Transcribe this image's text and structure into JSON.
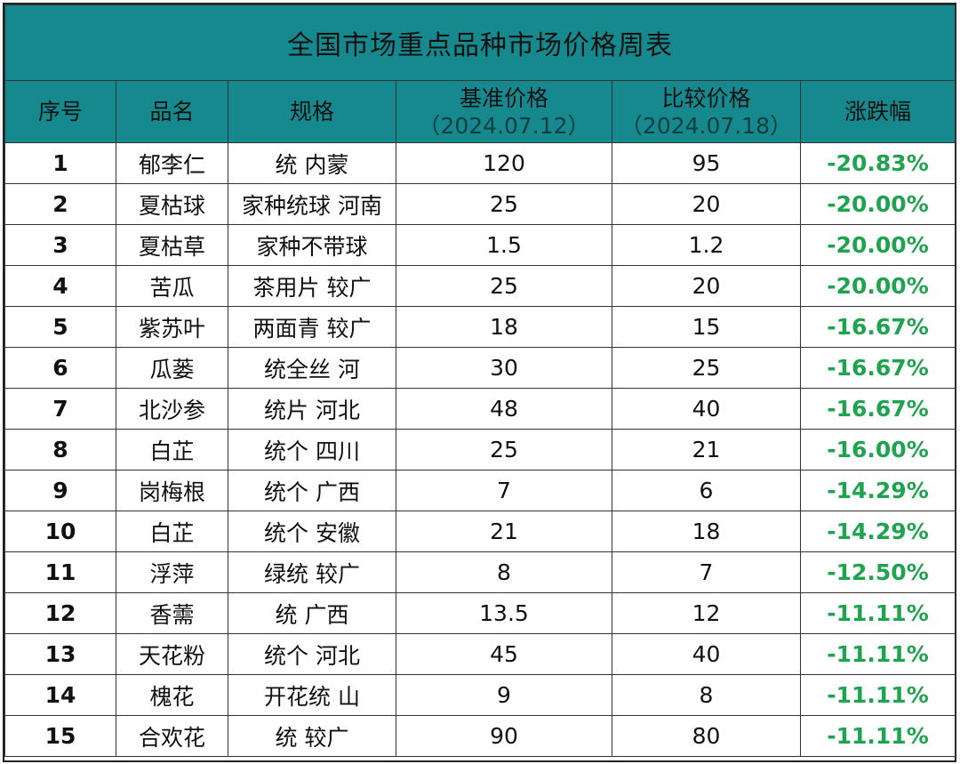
{
  "title": "全国市场重点品种市场价格周表",
  "headers": {
    "index": "序号",
    "name": "品名",
    "spec": "规格",
    "base_price": "基准价格",
    "base_date": "（2024.07.12）",
    "compare_price": "比较价格",
    "compare_date": "（2024.07.18）",
    "change": "涨跌幅"
  },
  "rows": [
    {
      "index": "1",
      "name": "郁李仁",
      "spec": "统 内蒙",
      "base": "120",
      "compare": "95",
      "change": "-20.83%"
    },
    {
      "index": "2",
      "name": "夏枯球",
      "spec": "家种统球 河南",
      "base": "25",
      "compare": "20",
      "change": "-20.00%"
    },
    {
      "index": "3",
      "name": "夏枯草",
      "spec": "家种不带球",
      "base": "1.5",
      "compare": "1.2",
      "change": "-20.00%"
    },
    {
      "index": "4",
      "name": "苦瓜",
      "spec": "茶用片 较广",
      "base": "25",
      "compare": "20",
      "change": "-20.00%"
    },
    {
      "index": "5",
      "name": "紫苏叶",
      "spec": "两面青 较广",
      "base": "18",
      "compare": "15",
      "change": "-16.67%"
    },
    {
      "index": "6",
      "name": "瓜蒌",
      "spec": "统全丝 河",
      "base": "30",
      "compare": "25",
      "change": "-16.67%"
    },
    {
      "index": "7",
      "name": "北沙参",
      "spec": "统片 河北",
      "base": "48",
      "compare": "40",
      "change": "-16.67%"
    },
    {
      "index": "8",
      "name": "白芷",
      "spec": "统个 四川",
      "base": "25",
      "compare": "21",
      "change": "-16.00%"
    },
    {
      "index": "9",
      "name": "岗梅根",
      "spec": "统个 广西",
      "base": "7",
      "compare": "6",
      "change": "-14.29%"
    },
    {
      "index": "10",
      "name": "白芷",
      "spec": "统个 安徽",
      "base": "21",
      "compare": "18",
      "change": "-14.29%"
    },
    {
      "index": "11",
      "name": "浮萍",
      "spec": "绿统 较广",
      "base": "8",
      "compare": "7",
      "change": "-12.50%"
    },
    {
      "index": "12",
      "name": "香薷",
      "spec": "统 广西",
      "base": "13.5",
      "compare": "12",
      "change": "-11.11%"
    },
    {
      "index": "13",
      "name": "天花粉",
      "spec": "统个 河北",
      "base": "45",
      "compare": "40",
      "change": "-11.11%"
    },
    {
      "index": "14",
      "name": "槐花",
      "spec": "开花统 山",
      "base": "9",
      "compare": "8",
      "change": "-11.11%"
    },
    {
      "index": "15",
      "name": "合欢花",
      "spec": "统 较广",
      "base": "90",
      "compare": "80",
      "change": "-11.11%"
    }
  ],
  "colors": {
    "header_bg": "#16898f",
    "change_text": "#1fa34f"
  }
}
